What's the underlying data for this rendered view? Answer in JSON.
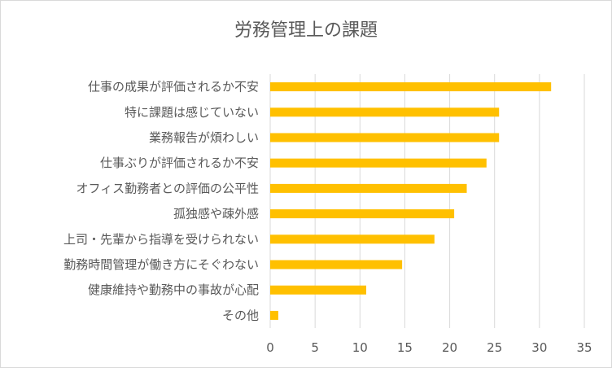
{
  "chart_data": {
    "type": "bar",
    "orientation": "horizontal",
    "title": "労務管理上の課題",
    "categories": [
      "仕事の成果が評価されるか不安",
      "特に課題は感じていない",
      "業務報告が煩わしい",
      "仕事ぶりが評価されるか不安",
      "オフィス勤務者との評価の公平性",
      "孤独感や疎外感",
      "上司・先輩から指導を受けられない",
      "勤務時間管理が働き方にそぐわない",
      "健康維持や勤務中の事故が心配",
      "その他"
    ],
    "values": [
      31.3,
      25.5,
      25.5,
      24.1,
      21.9,
      20.5,
      18.3,
      14.7,
      10.7,
      0.9
    ],
    "xlim": [
      0,
      35
    ],
    "xticks": [
      0,
      5,
      10,
      15,
      20,
      25,
      30,
      35
    ],
    "xlabel": "",
    "ylabel": "",
    "grid": "vertical",
    "legend": "none",
    "bar_color": "#FFC000",
    "grid_color": "#d9d9d9",
    "text_color": "#595959"
  }
}
